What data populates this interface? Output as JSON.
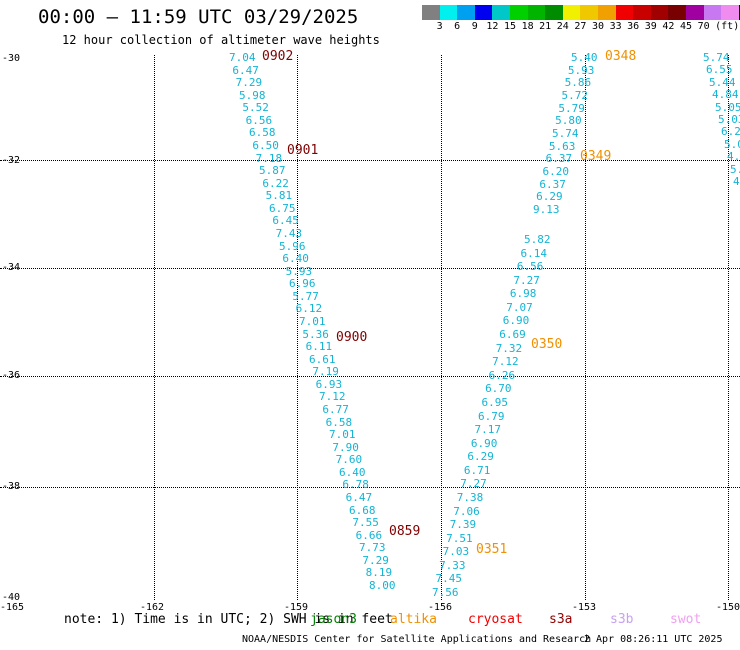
{
  "header": {
    "title": "00:00 – 11:59 UTC 03/29/2025",
    "subtitle": "12 hour collection of altimeter wave heights"
  },
  "colorbar": {
    "colors": [
      "#808080",
      "#00f0f0",
      "#00a0f0",
      "#0000f0",
      "#00c8c8",
      "#00d000",
      "#00b400",
      "#008c00",
      "#f0f000",
      "#f0c800",
      "#f0a000",
      "#f00000",
      "#c80000",
      "#a00000",
      "#780000",
      "#a000a0",
      "#c878f0",
      "#f08cf0",
      "#000000"
    ],
    "ticks": [
      "3",
      "6",
      "9",
      "12",
      "15",
      "18",
      "21",
      "24",
      "27",
      "30",
      "33",
      "36",
      "39",
      "42",
      "45",
      "70",
      "(ft)"
    ]
  },
  "axes": {
    "y_labels": [
      "-30",
      "-32",
      "-34",
      "-36",
      "-38",
      "-40"
    ],
    "x_labels": [
      "-165",
      "-162",
      "-159",
      "-156",
      "-153",
      "-150"
    ]
  },
  "time_labels": {
    "t0902": "0902",
    "t0901": "0901",
    "t0900": "0900",
    "t0859": "0859",
    "t0348": "0348",
    "t0349": "0349",
    "t0350": "0350",
    "t0351": "0351"
  },
  "track_left": [
    "7.04",
    "6.47",
    "7.29",
    "5.98",
    "5.52",
    "6.56",
    "6.58",
    "6.50",
    "7.18",
    "5.87",
    "6.22",
    "5.81",
    "6.75",
    "6.45",
    "7.43",
    "5.96",
    "6.40",
    "5.93",
    "6.96",
    "5.77",
    "6.12",
    "7.01",
    "5.36",
    "6.11",
    "6.61",
    "7.19",
    "6.93",
    "7.12",
    "6.77",
    "6.58",
    "7.01",
    "7.90",
    "7.60",
    "6.40",
    "6.78",
    "6.47",
    "6.68",
    "7.55",
    "6.66",
    "7.73",
    "7.29",
    "8.19",
    "8.00"
  ],
  "track_mid_top": [
    "5.40",
    "5.93",
    "5.86",
    "5.72",
    "5.79",
    "5.80",
    "5.74",
    "5.63",
    "6.37",
    "6.20",
    "6.37",
    "6.29",
    "9.13"
  ],
  "track_mid_bottom": [
    "5.82",
    "6.14",
    "6.56",
    "7.27",
    "6.98",
    "7.07",
    "6.90",
    "6.69",
    "7.32",
    "7.12",
    "6.26",
    "6.70",
    "6.95",
    "6.79",
    "7.17",
    "6.90",
    "6.29",
    "6.71",
    "7.27",
    "7.38",
    "7.06",
    "7.39",
    "7.51",
    "7.03",
    "7.33",
    "7.45",
    "7.56"
  ],
  "track_right": [
    "5.74",
    "6.55",
    "5.44",
    "4.84",
    "5.05",
    "5.03",
    "6.2",
    "5.0",
    "4.",
    "5.",
    "4."
  ],
  "footer": {
    "note": "note: 1) Time is in UTC; 2) SWH is in feet",
    "legend": [
      "jason3",
      "altika",
      "cryosat",
      "s3a",
      "s3b",
      "swot"
    ],
    "legend_colors": [
      "#008000",
      "#f09000",
      "#f00000",
      "#900000",
      "#c8a0f0",
      "#f0a0f0"
    ],
    "credit": "NOAA/NESDIS Center for Satellite Applications and Research",
    "timestamp": "2 Apr 08:26:11 UTC 2025"
  }
}
